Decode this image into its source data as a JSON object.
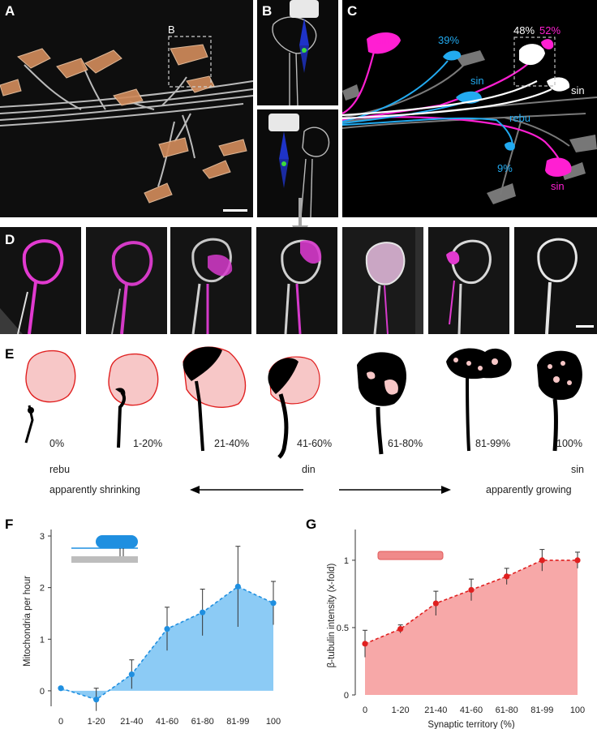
{
  "panel_labels": {
    "A": "A",
    "B": "B",
    "C": "C",
    "D": "D",
    "E": "E",
    "F": "F",
    "G": "G"
  },
  "panel_a": {
    "inset_label": "B"
  },
  "panel_c": {
    "labels": {
      "sin_top": "sin",
      "pct_39": "39%",
      "pct_48": "48%",
      "pct_52": "52%",
      "sin_mid": "sin",
      "sin_right": "sin",
      "rebu": "rebu",
      "pct_9": "9%",
      "sin_bottom": "sin"
    },
    "colors": {
      "magenta": "#ff1fd2",
      "cyan": "#22aaf0",
      "white": "#ffffff",
      "gray": "#7a7a7a"
    }
  },
  "panel_e": {
    "percentages": [
      "0%",
      "1-20%",
      "21-40%",
      "41-60%",
      "61-80%",
      "81-99%",
      "100%"
    ],
    "rebu": "rebu",
    "din": "din",
    "sin": "sin",
    "shrinking": "apparently shrinking",
    "growing": "apparently growing",
    "colors": {
      "territory_fill": "#f7c7c7",
      "territory_edge": "#e02020",
      "axon": "#000000"
    }
  },
  "chart_data": [
    {
      "type": "area",
      "panel": "F",
      "xlabel": "Synaptic territory (%)",
      "ylabel": "Mitochondria per hour",
      "categories": [
        "0",
        "1-20",
        "21-40",
        "41-60",
        "61-80",
        "81-99",
        "100"
      ],
      "series": [
        {
          "values": [
            0.05,
            -0.17,
            0.32,
            1.2,
            1.52,
            2.02,
            1.7
          ],
          "error": [
            0.0,
            0.22,
            0.28,
            0.42,
            0.45,
            0.78,
            0.42
          ]
        }
      ],
      "ylim": [
        -0.3,
        3
      ],
      "yticks": [
        "0",
        "1",
        "2",
        "3"
      ],
      "color": "#1f8fe0",
      "fill": "#8ccbf5"
    },
    {
      "type": "area",
      "panel": "G",
      "xlabel": "Synaptic territory (%)",
      "ylabel": "β-tubulin intensity (x-fold)",
      "categories": [
        "0",
        "1-20",
        "21-40",
        "41-60",
        "61-80",
        "81-99",
        "100"
      ],
      "series": [
        {
          "values": [
            0.38,
            0.49,
            0.68,
            0.78,
            0.88,
            1.0,
            1.0
          ],
          "error": [
            0.1,
            0.03,
            0.09,
            0.08,
            0.06,
            0.08,
            0.06
          ]
        }
      ],
      "ylim": [
        0,
        1.18
      ],
      "yticks": [
        "0",
        "0.5",
        "1"
      ],
      "color": "#e02020",
      "fill": "#f7a8a8"
    }
  ]
}
